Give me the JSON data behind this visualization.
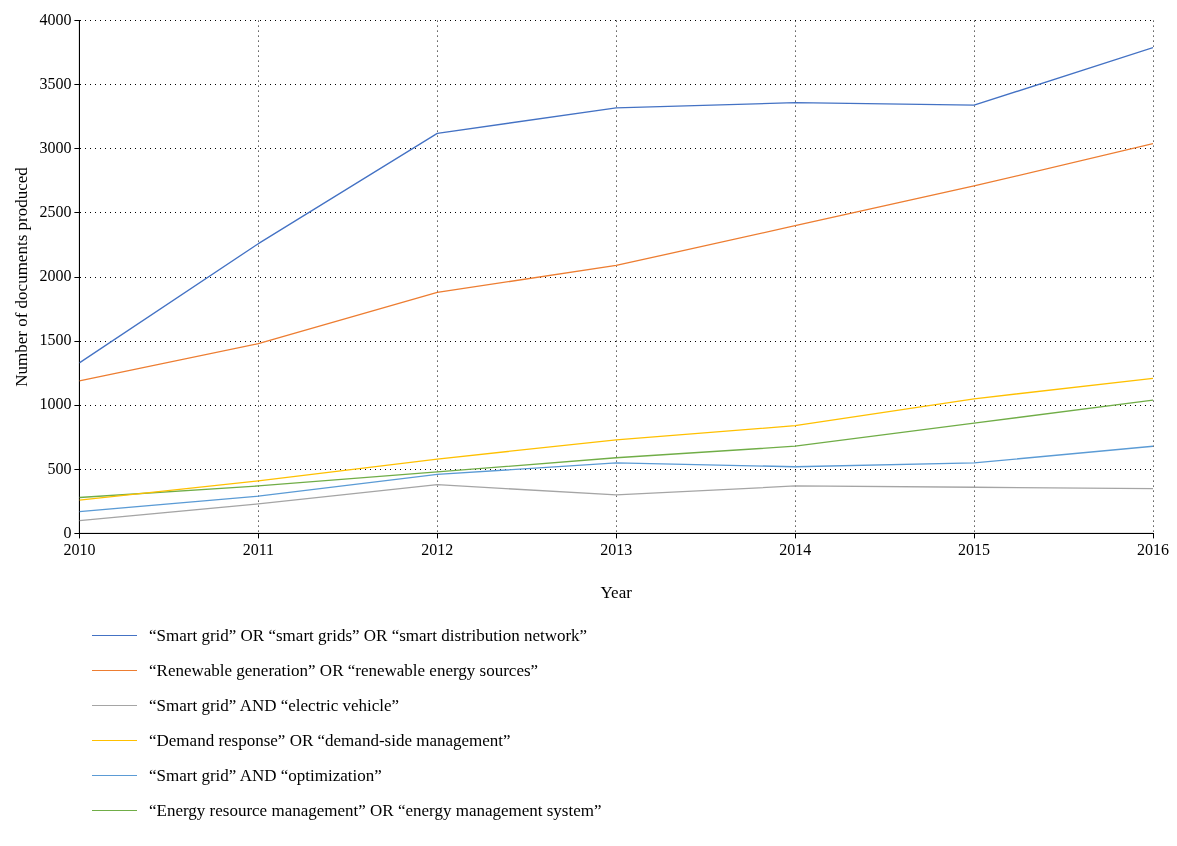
{
  "chart_data": {
    "type": "line",
    "xlabel": "Year",
    "ylabel": "Number of documents produced",
    "x": [
      2010,
      2011,
      2012,
      2013,
      2014,
      2015,
      2016
    ],
    "xlim": [
      2010,
      2016
    ],
    "xticks": [
      2010,
      2011,
      2012,
      2013,
      2014,
      2015,
      2016
    ],
    "ylim": [
      0,
      4000
    ],
    "yticks": [
      0,
      500,
      1000,
      1500,
      2000,
      2500,
      3000,
      3500,
      4000
    ],
    "grid": true,
    "legend": "bottom",
    "series": [
      {
        "name": "“Smart grid” OR “smart grids” OR “smart distribution network”",
        "color": "#4472c4",
        "values": [
          1330,
          2260,
          3120,
          3320,
          3360,
          3340,
          3790
        ]
      },
      {
        "name": "“Renewable generation” OR “renewable energy sources”",
        "color": "#ed7d31",
        "values": [
          1190,
          1480,
          1880,
          2090,
          2400,
          2710,
          3040
        ]
      },
      {
        "name": "“Smart grid” AND “electric vehicle”",
        "color": "#a5a5a5",
        "values": [
          100,
          230,
          380,
          300,
          370,
          360,
          350
        ]
      },
      {
        "name": "“Demand response” OR “demand-side management”",
        "color": "#ffc000",
        "values": [
          260,
          410,
          580,
          730,
          840,
          1050,
          1210
        ]
      },
      {
        "name": "“Smart grid” AND “optimization”",
        "color": "#5b9bd5",
        "values": [
          170,
          290,
          460,
          550,
          520,
          550,
          680
        ]
      },
      {
        "name": "“Energy resource management” OR “energy management system”",
        "color": "#70ad47",
        "values": [
          280,
          370,
          480,
          590,
          680,
          860,
          1040
        ]
      }
    ]
  }
}
